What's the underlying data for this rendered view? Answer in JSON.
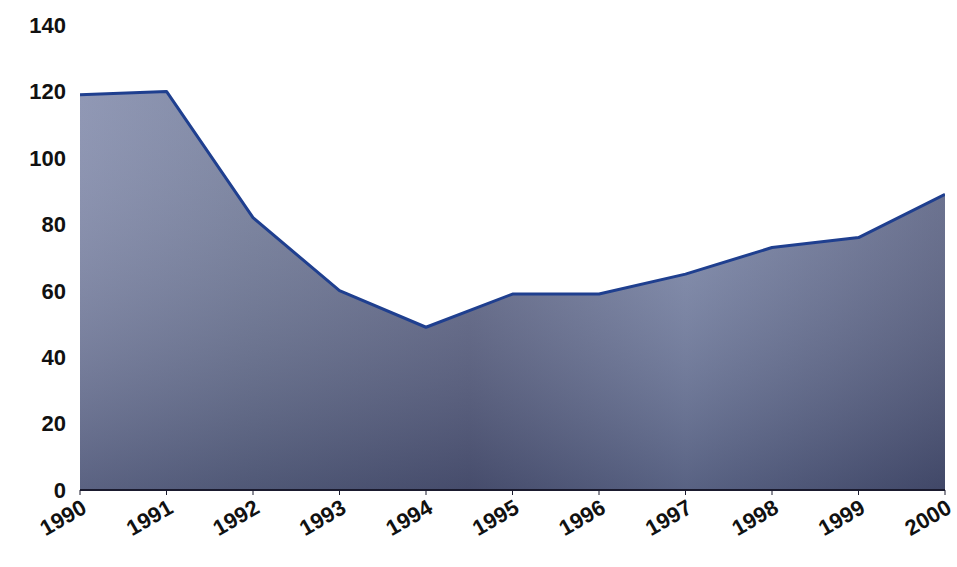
{
  "chart_data": {
    "type": "area",
    "x": [
      1990,
      1991,
      1992,
      1993,
      1994,
      1995,
      1996,
      1997,
      1998,
      1999,
      2000
    ],
    "values": [
      119,
      120,
      82,
      60,
      49,
      59,
      59,
      65,
      73,
      76,
      89
    ],
    "color": "#1f3f8f",
    "xlim": [
      1990,
      2000
    ],
    "xticks": [
      1990,
      1991,
      1992,
      1993,
      1994,
      1995,
      1996,
      1997,
      1998,
      1999,
      2000
    ],
    "ylim": [
      0,
      140
    ],
    "yticks": [
      0,
      20,
      40,
      60,
      80,
      100,
      120,
      140
    ],
    "grid": false
  }
}
